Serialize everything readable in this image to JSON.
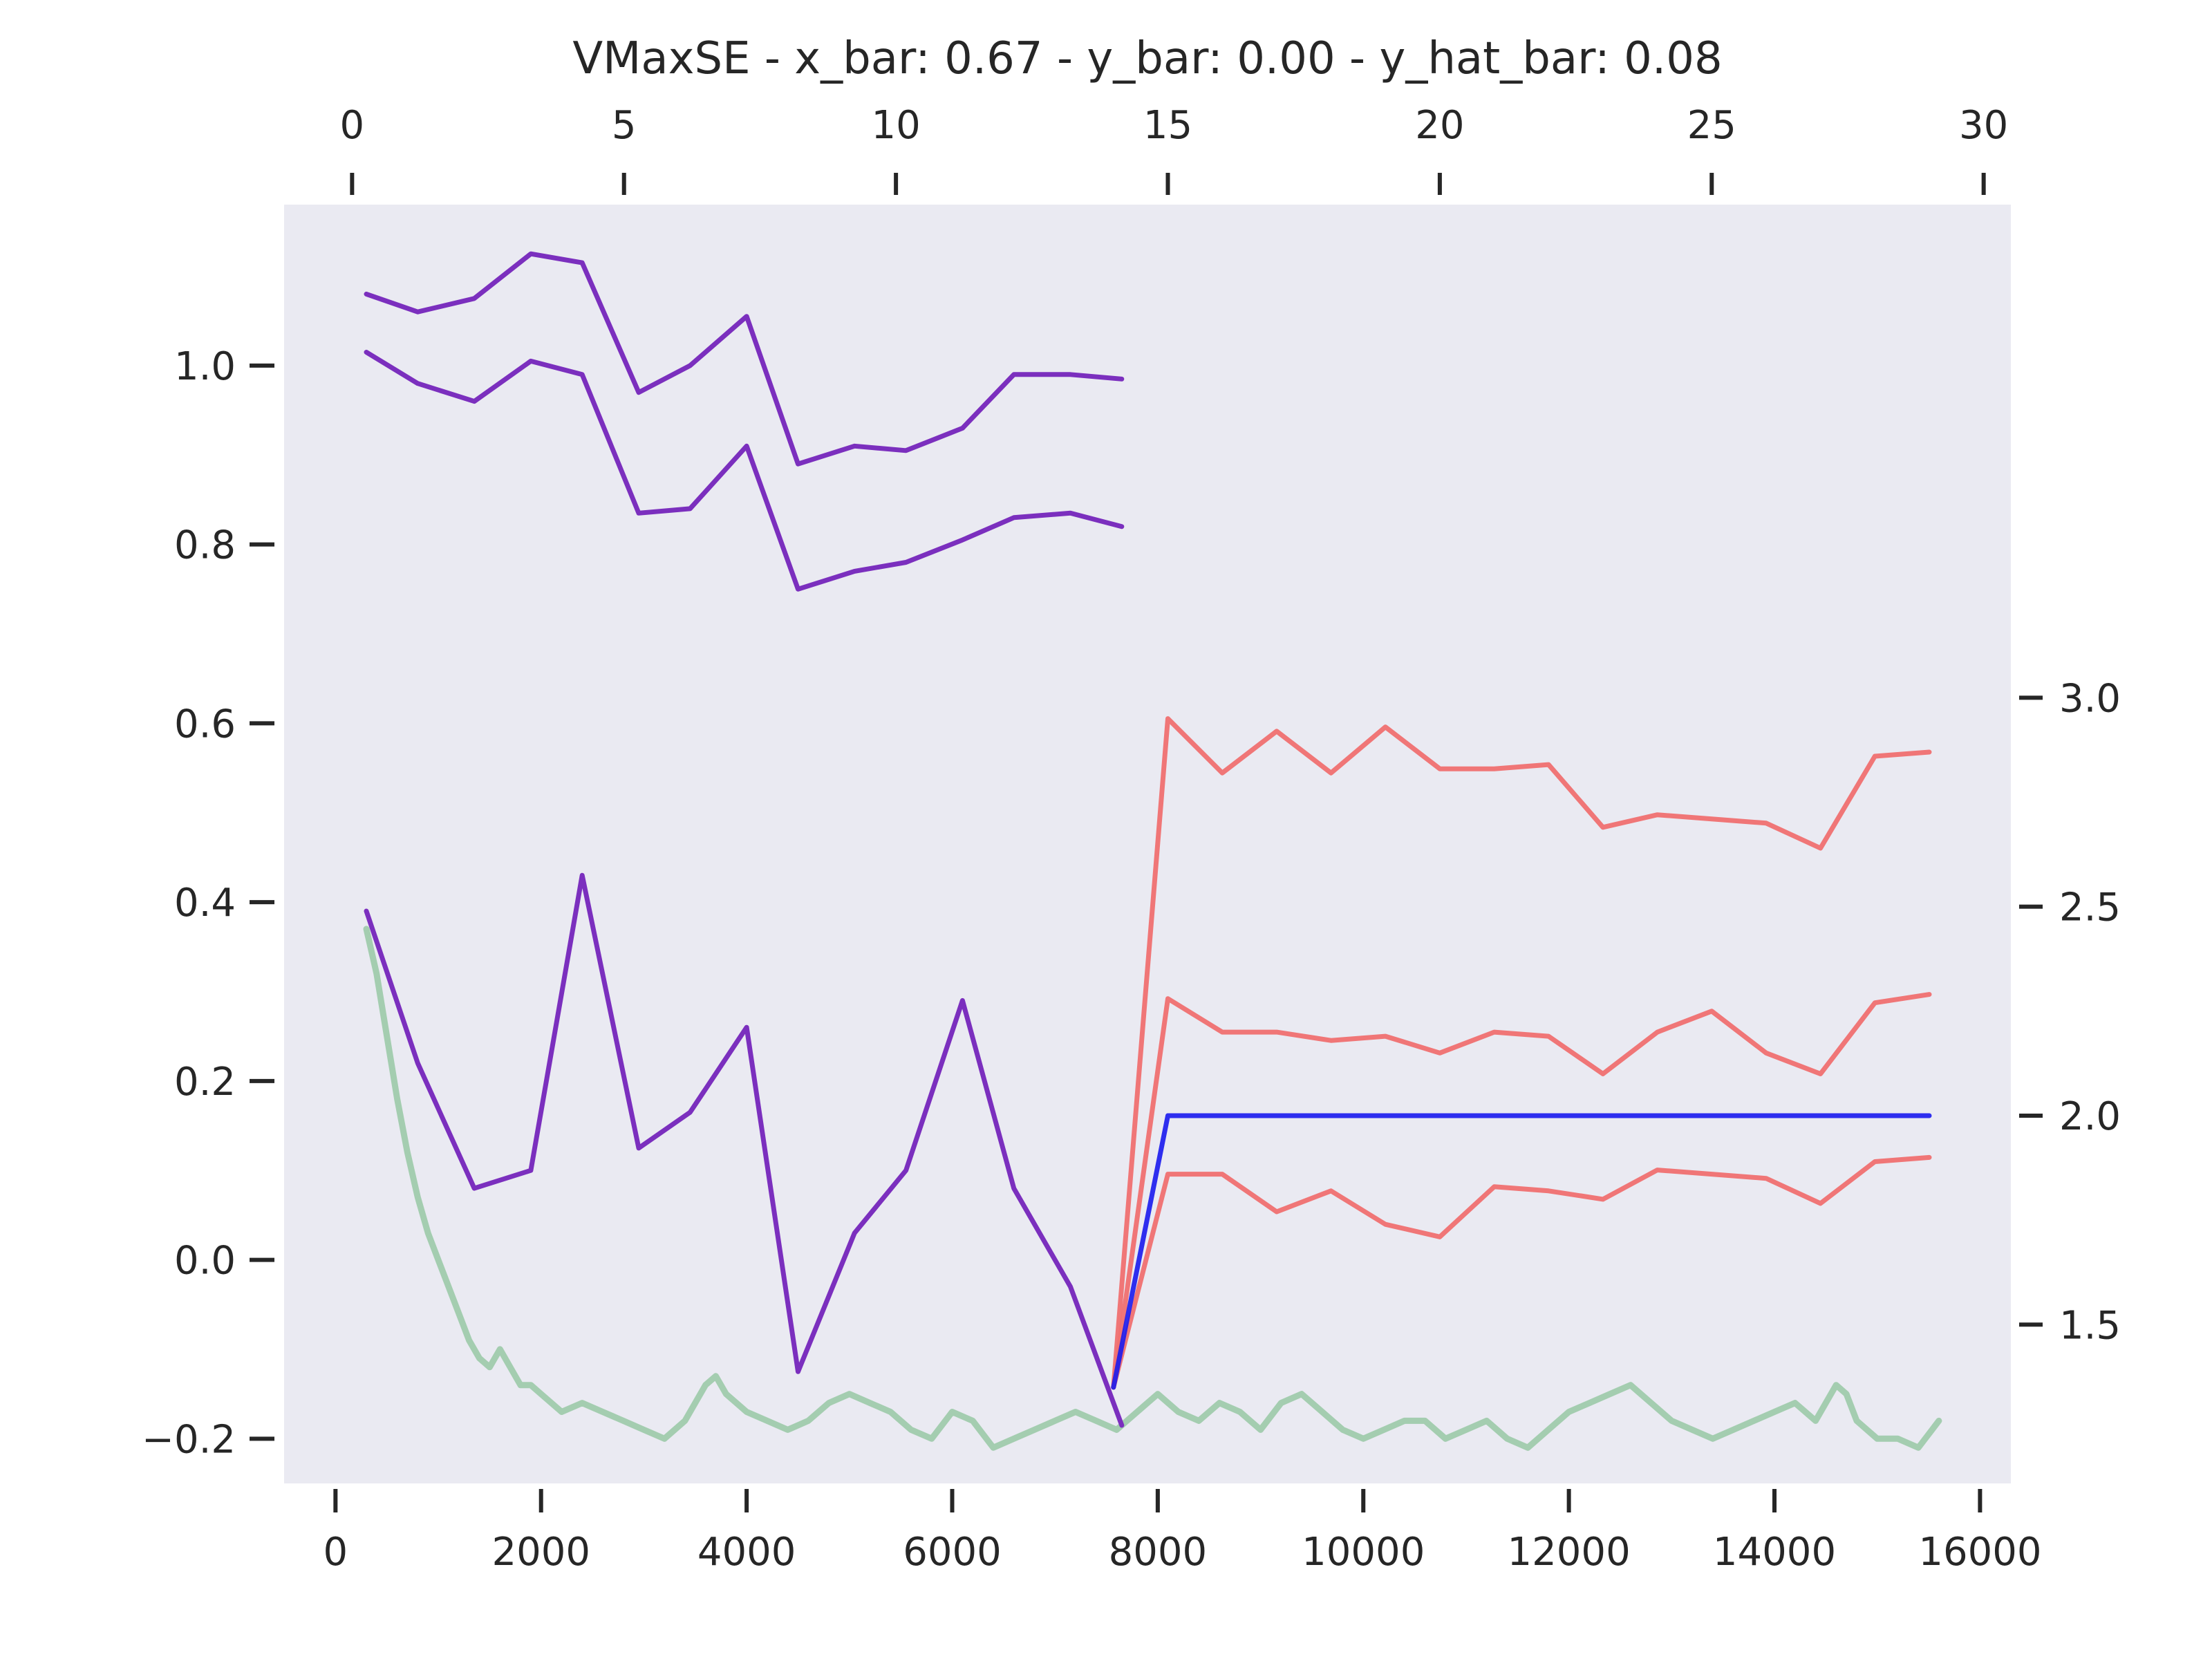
{
  "chart_data": {
    "type": "line",
    "title": "VMaxSE - x_bar: 0.67 - y_bar: 0.00 - y_hat_bar: 0.08",
    "grid": false,
    "axes": {
      "x_bottom": {
        "range": [
          -500,
          16300
        ],
        "ticks": [
          0,
          2000,
          4000,
          6000,
          8000,
          10000,
          12000,
          14000,
          16000
        ]
      },
      "y_left": {
        "range": [
          -0.25,
          1.18
        ],
        "ticks": [
          -0.2,
          0.0,
          0.2,
          0.4,
          0.6,
          0.8,
          1.0
        ],
        "tick_labels": [
          "−0.2",
          "0.0",
          "0.2",
          "0.4",
          "0.6",
          "0.8",
          "1.0"
        ]
      },
      "x_top": {
        "range": [
          -1.25,
          30.5
        ],
        "ticks": [
          0,
          5,
          10,
          15,
          20,
          25,
          30
        ]
      },
      "y_right": {
        "range": [
          1.12,
          4.18
        ],
        "ticks": [
          1.5,
          2.0,
          2.5,
          3.0
        ],
        "tick_labels": [
          "1.5",
          "2.0",
          "2.5",
          "3.0"
        ]
      }
    },
    "colors": {
      "purple": "#7b2fbe",
      "red": "#f07070",
      "blue": "#1a1aee",
      "green": "#9ccaa8"
    },
    "series_bottom_left": [
      {
        "color": "purple",
        "x": [
          300,
          800,
          1350,
          1900,
          2400,
          2950,
          3450,
          4000,
          4500,
          5050,
          5550,
          6100,
          6600,
          7150,
          7650
        ],
        "y": [
          1.08,
          1.06,
          1.075,
          1.125,
          1.115,
          0.97,
          1.0,
          1.055,
          0.89,
          0.91,
          0.905,
          0.93,
          0.99,
          0.99,
          0.985
        ]
      },
      {
        "color": "purple",
        "x": [
          300,
          800,
          1350,
          1900,
          2400,
          2950,
          3450,
          4000,
          4500,
          5050,
          5550,
          6100,
          6600,
          7150,
          7650
        ],
        "y": [
          1.015,
          0.98,
          0.96,
          1.005,
          0.99,
          0.835,
          0.84,
          0.91,
          0.75,
          0.77,
          0.78,
          0.805,
          0.83,
          0.835,
          0.82
        ]
      },
      {
        "color": "purple",
        "x": [
          300,
          800,
          1350,
          1900,
          2400,
          2950,
          3450,
          4000,
          4500,
          5050,
          5550,
          6100,
          6600,
          7150,
          7650
        ],
        "y": [
          0.39,
          0.22,
          0.08,
          0.1,
          0.43,
          0.125,
          0.165,
          0.26,
          -0.125,
          0.03,
          0.1,
          0.29,
          0.08,
          -0.03,
          -0.185
        ]
      }
    ],
    "series_top_right": [
      {
        "color": "red",
        "x": [
          14,
          15,
          16,
          17,
          18,
          19,
          20,
          21,
          22,
          23,
          24,
          25,
          26,
          27,
          28,
          29
        ],
        "y": [
          1.35,
          2.95,
          2.82,
          2.92,
          2.82,
          2.93,
          2.83,
          2.83,
          2.84,
          2.69,
          2.72,
          2.71,
          2.7,
          2.64,
          2.86,
          2.87
        ]
      },
      {
        "color": "red",
        "x": [
          14,
          15,
          16,
          17,
          18,
          19,
          20,
          21,
          22,
          23,
          24,
          25,
          26,
          27,
          28,
          29
        ],
        "y": [
          1.35,
          2.28,
          2.2,
          2.2,
          2.18,
          2.19,
          2.15,
          2.2,
          2.19,
          2.1,
          2.2,
          2.25,
          2.15,
          2.1,
          2.27,
          2.29
        ]
      },
      {
        "color": "red",
        "x": [
          14,
          15,
          16,
          17,
          18,
          19,
          20,
          21,
          22,
          23,
          24,
          25,
          26,
          27,
          28,
          29
        ],
        "y": [
          1.35,
          1.86,
          1.86,
          1.77,
          1.82,
          1.74,
          1.71,
          1.83,
          1.82,
          1.8,
          1.87,
          1.86,
          1.85,
          1.79,
          1.89,
          1.9
        ]
      },
      {
        "color": "blue",
        "x": [
          14,
          15,
          16,
          17,
          18,
          19,
          20,
          21,
          22,
          23,
          24,
          25,
          26,
          27,
          28,
          29
        ],
        "y": [
          1.35,
          2.0,
          2.0,
          2.0,
          2.0,
          2.0,
          2.0,
          2.0,
          2.0,
          2.0,
          2.0,
          2.0,
          2.0,
          2.0,
          2.0,
          2.0
        ]
      }
    ],
    "series_green": {
      "color": "green",
      "x": [
        300,
        400,
        500,
        600,
        700,
        800,
        900,
        1000,
        1100,
        1200,
        1300,
        1400,
        1500,
        1600,
        1700,
        1800,
        1900,
        2000,
        2200,
        2400,
        2600,
        2800,
        3000,
        3200,
        3400,
        3600,
        3700,
        3800,
        4000,
        4200,
        4400,
        4600,
        4800,
        5000,
        5200,
        5400,
        5600,
        5800,
        6000,
        6200,
        6400,
        6600,
        6800,
        7000,
        7200,
        7400,
        7600,
        7800,
        8000,
        8200,
        8400,
        8600,
        8800,
        9000,
        9200,
        9400,
        9600,
        9800,
        10000,
        10200,
        10400,
        10600,
        10800,
        11000,
        11200,
        11400,
        11600,
        11800,
        12000,
        12200,
        12400,
        12600,
        12800,
        13000,
        13200,
        13400,
        13600,
        13800,
        14000,
        14200,
        14400,
        14600,
        14700,
        14800,
        15000,
        15200,
        15400,
        15600
      ],
      "y": [
        0.37,
        0.32,
        0.25,
        0.18,
        0.12,
        0.07,
        0.03,
        0.0,
        -0.03,
        -0.06,
        -0.09,
        -0.11,
        -0.12,
        -0.1,
        -0.12,
        -0.14,
        -0.14,
        -0.15,
        -0.17,
        -0.16,
        -0.17,
        -0.18,
        -0.19,
        -0.2,
        -0.18,
        -0.14,
        -0.13,
        -0.15,
        -0.17,
        -0.18,
        -0.19,
        -0.18,
        -0.16,
        -0.15,
        -0.16,
        -0.17,
        -0.19,
        -0.2,
        -0.17,
        -0.18,
        -0.21,
        -0.2,
        -0.19,
        -0.18,
        -0.17,
        -0.18,
        -0.19,
        -0.17,
        -0.15,
        -0.17,
        -0.18,
        -0.16,
        -0.17,
        -0.19,
        -0.16,
        -0.15,
        -0.17,
        -0.19,
        -0.2,
        -0.19,
        -0.18,
        -0.18,
        -0.2,
        -0.19,
        -0.18,
        -0.2,
        -0.21,
        -0.19,
        -0.17,
        -0.16,
        -0.15,
        -0.14,
        -0.16,
        -0.18,
        -0.19,
        -0.2,
        -0.19,
        -0.18,
        -0.17,
        -0.16,
        -0.18,
        -0.14,
        -0.15,
        -0.18,
        -0.2,
        -0.2,
        -0.21,
        -0.18
      ]
    }
  }
}
